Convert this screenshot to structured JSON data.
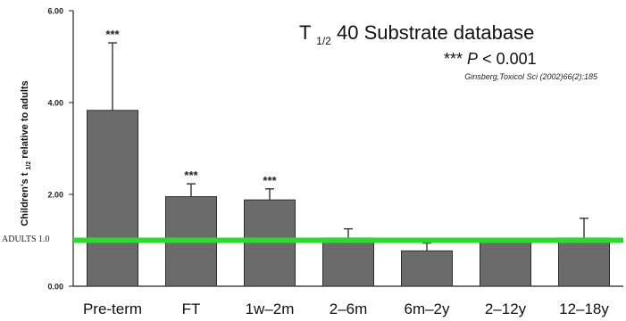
{
  "chart_data": {
    "type": "bar",
    "title_main": "T",
    "title_sub": "1/2",
    "title_rest": " 40 Substrate database",
    "significance": {
      "stars": "***",
      "p": "P",
      "rest": " < 0.001"
    },
    "citation": "Ginsberg,Toxicol Sci (2002)66(2):185",
    "ylabel_main": "Children's t",
    "ylabel_sub": "1/2",
    "ylabel_rest": " relative to adults",
    "ylim": [
      0,
      6
    ],
    "yticks": [
      "0.00",
      "2.00",
      "4.00",
      "6.00"
    ],
    "ytick_values": [
      0,
      2,
      4,
      6
    ],
    "adult_label": "ADULTS  1.0",
    "reference_line": 1.0,
    "categories": [
      "Pre-term",
      "FT",
      "1w–2m",
      "2–6m",
      "6m–2y",
      "2–12y",
      "12–18y"
    ],
    "values": [
      3.83,
      1.95,
      1.88,
      1.05,
      0.77,
      0.97,
      1.05
    ],
    "errors": [
      1.47,
      0.28,
      0.24,
      0.2,
      0.17,
      0.07,
      0.43
    ],
    "annotations": [
      "***",
      "***",
      "***",
      "",
      "",
      "",
      ""
    ],
    "colors": {
      "bar": "#6b6b6b",
      "bar_stroke": "#2f2f2f",
      "line": "#2bdc2b",
      "text": "#222222"
    }
  }
}
